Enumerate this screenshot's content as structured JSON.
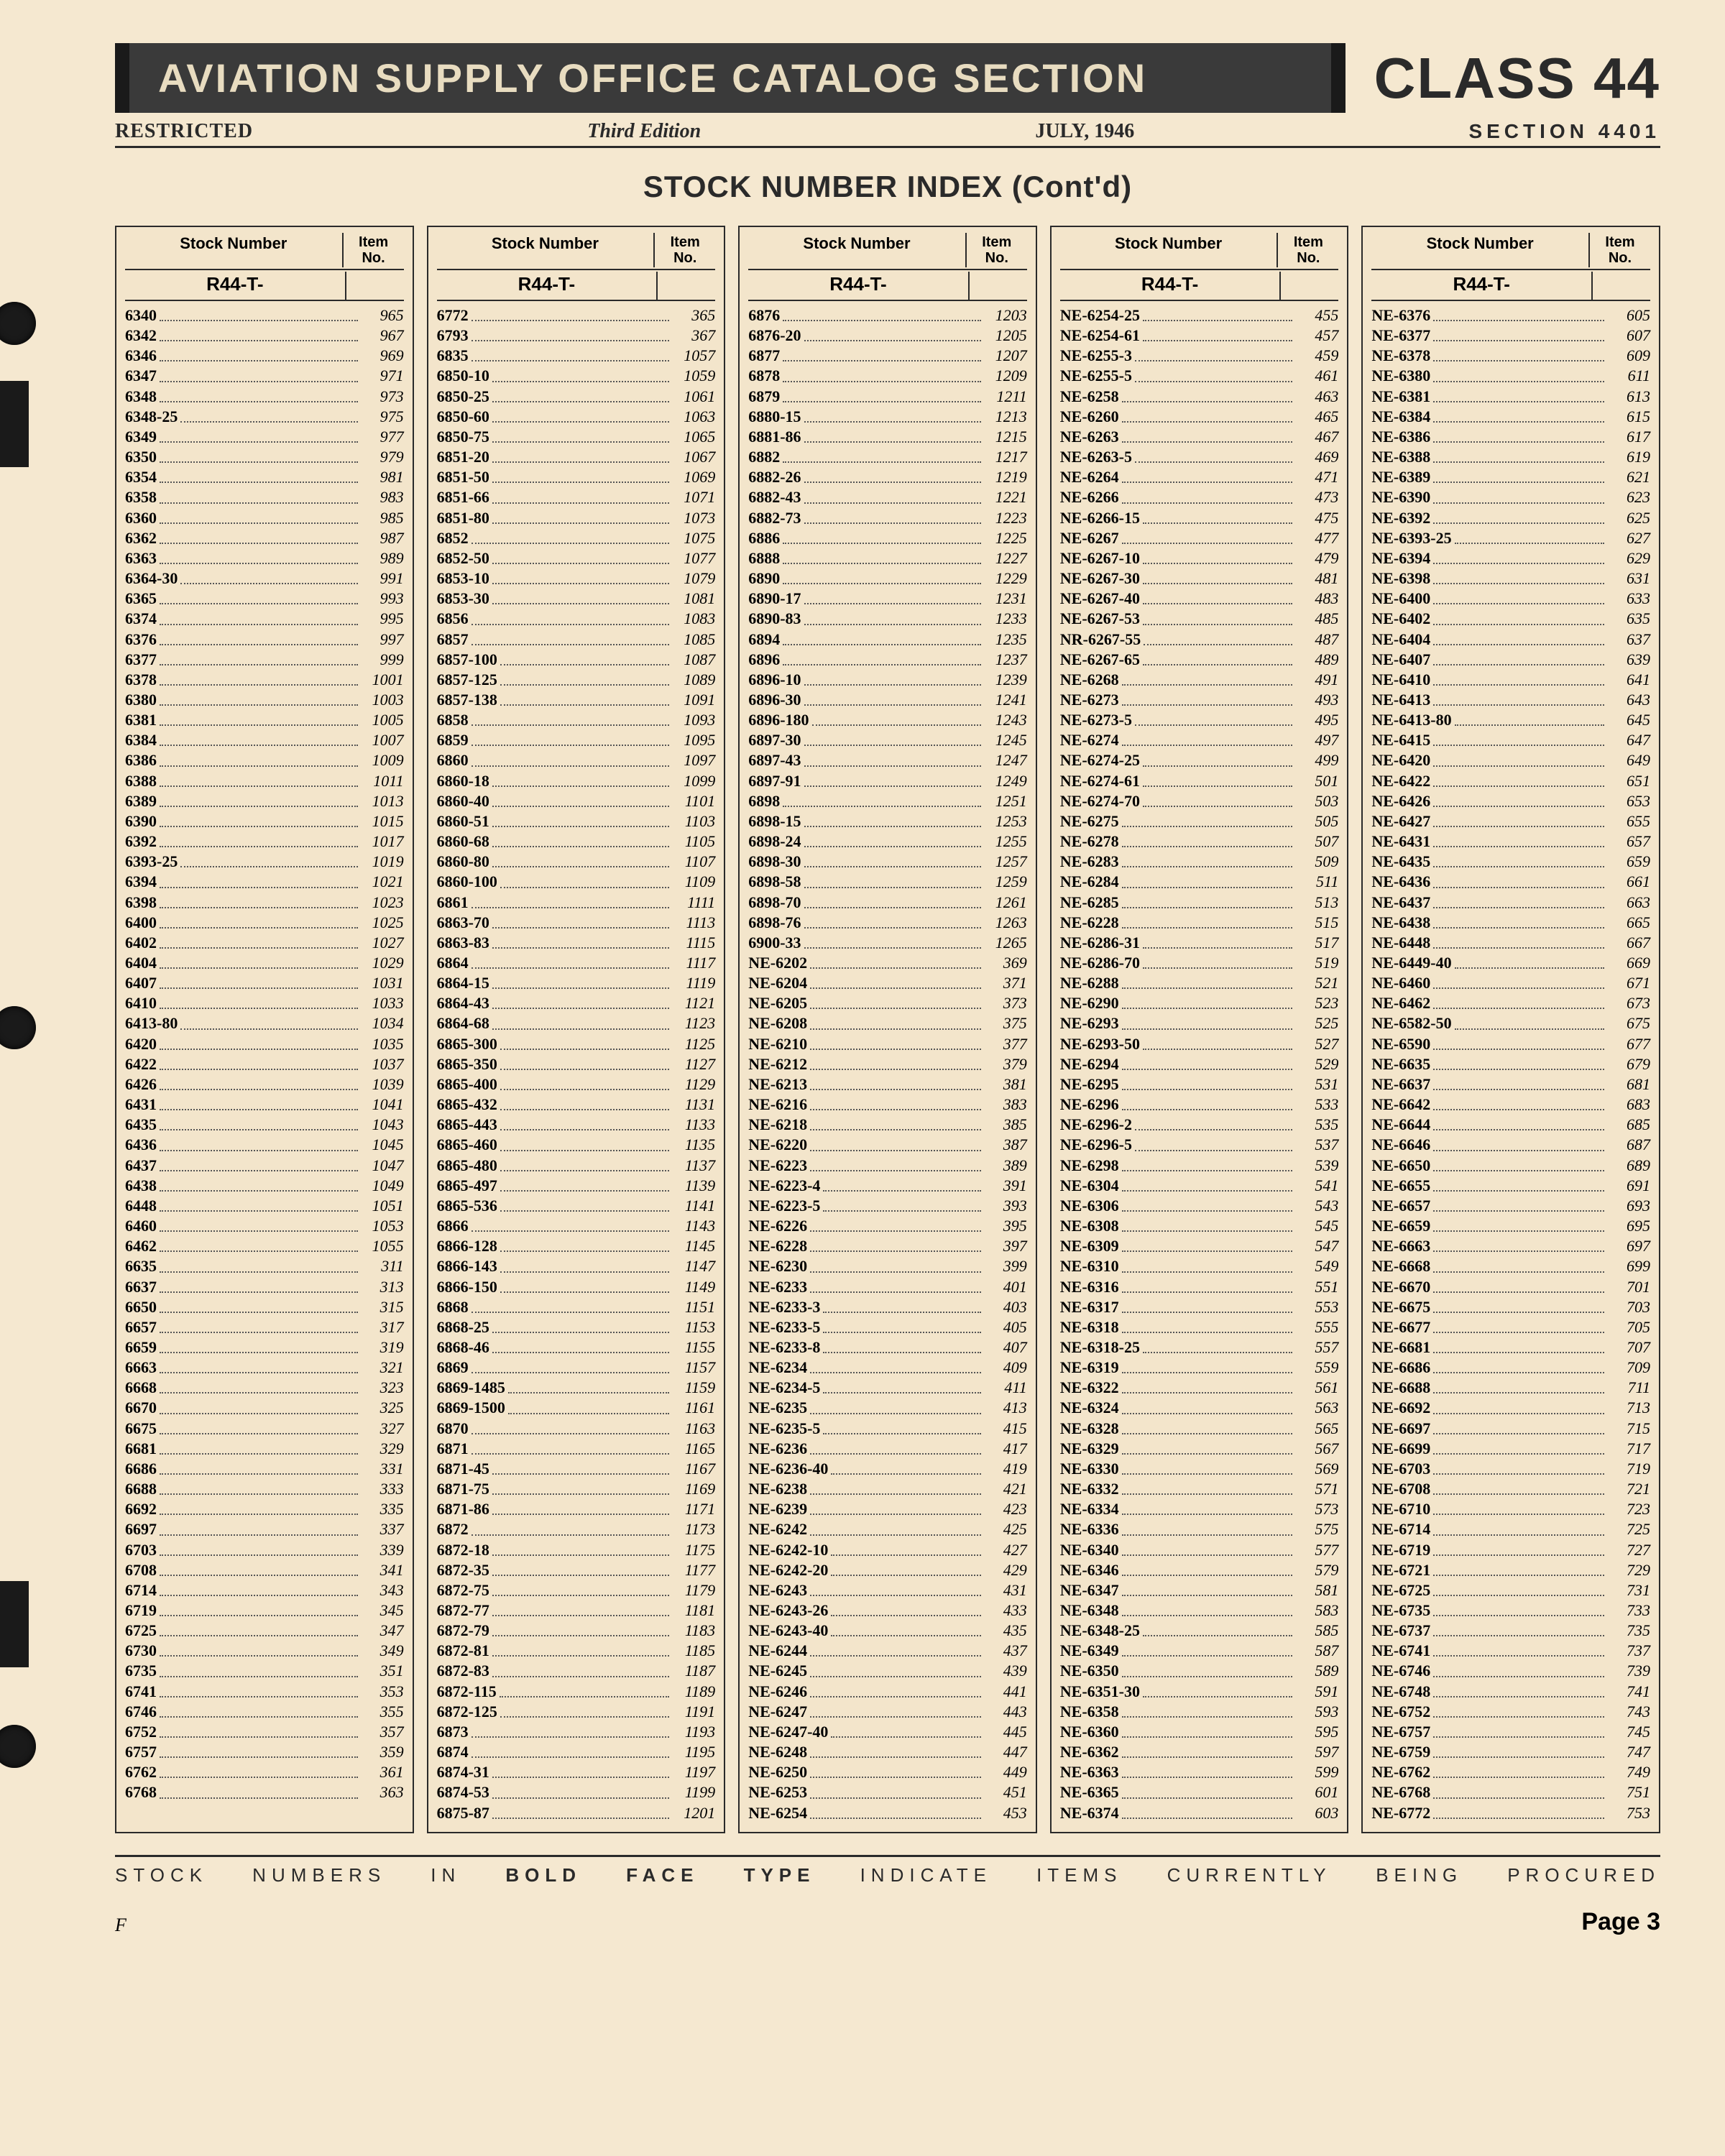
{
  "header": {
    "banner": "AVIATION SUPPLY OFFICE CATALOG SECTION",
    "class_label": "CLASS 44",
    "restricted": "RESTRICTED",
    "edition": "Third Edition",
    "date": "JULY, 1946",
    "section": "SECTION 4401"
  },
  "index_title": "STOCK NUMBER INDEX (Cont'd)",
  "col_hdr": {
    "stock": "Stock Number",
    "item": "Item\nNo.",
    "prefix": "R44-T-"
  },
  "columns": [
    [
      [
        "6340",
        "965"
      ],
      [
        "6342",
        "967"
      ],
      [
        "6346",
        "969"
      ],
      [
        "6347",
        "971"
      ],
      [
        "6348",
        "973"
      ],
      [
        "6348-25",
        "975"
      ],
      [
        "6349",
        "977"
      ],
      [
        "6350",
        "979"
      ],
      [
        "6354",
        "981"
      ],
      [
        "6358",
        "983"
      ],
      [
        "6360",
        "985"
      ],
      [
        "6362",
        "987"
      ],
      [
        "6363",
        "989"
      ],
      [
        "6364-30",
        "991"
      ],
      [
        "6365",
        "993"
      ],
      [
        "6374",
        "995"
      ],
      [
        "6376",
        "997"
      ],
      [
        "6377",
        "999"
      ],
      [
        "6378",
        "1001"
      ],
      [
        "6380",
        "1003"
      ],
      [
        "6381",
        "1005"
      ],
      [
        "6384",
        "1007"
      ],
      [
        "6386",
        "1009"
      ],
      [
        "6388",
        "1011"
      ],
      [
        "6389",
        "1013"
      ],
      [
        "6390",
        "1015"
      ],
      [
        "6392",
        "1017"
      ],
      [
        "6393-25",
        "1019"
      ],
      [
        "6394",
        "1021"
      ],
      [
        "6398",
        "1023"
      ],
      [
        "6400",
        "1025"
      ],
      [
        "6402",
        "1027"
      ],
      [
        "6404",
        "1029"
      ],
      [
        "6407",
        "1031"
      ],
      [
        "6410",
        "1033"
      ],
      [
        "6413-80",
        "1034"
      ],
      [
        "6420",
        "1035"
      ],
      [
        "6422",
        "1037"
      ],
      [
        "6426",
        "1039"
      ],
      [
        "6431",
        "1041"
      ],
      [
        "6435",
        "1043"
      ],
      [
        "6436",
        "1045"
      ],
      [
        "6437",
        "1047"
      ],
      [
        "6438",
        "1049"
      ],
      [
        "6448",
        "1051"
      ],
      [
        "6460",
        "1053"
      ],
      [
        "6462",
        "1055"
      ],
      [
        "6635",
        "311"
      ],
      [
        "6637",
        "313"
      ],
      [
        "6650",
        "315"
      ],
      [
        "6657",
        "317"
      ],
      [
        "6659",
        "319"
      ],
      [
        "6663",
        "321"
      ],
      [
        "6668",
        "323"
      ],
      [
        "6670",
        "325"
      ],
      [
        "6675",
        "327"
      ],
      [
        "6681",
        "329"
      ],
      [
        "6686",
        "331"
      ],
      [
        "6688",
        "333"
      ],
      [
        "6692",
        "335"
      ],
      [
        "6697",
        "337"
      ],
      [
        "6703",
        "339"
      ],
      [
        "6708",
        "341"
      ],
      [
        "6714",
        "343"
      ],
      [
        "6719",
        "345"
      ],
      [
        "6725",
        "347"
      ],
      [
        "6730",
        "349"
      ],
      [
        "6735",
        "351"
      ],
      [
        "6741",
        "353"
      ],
      [
        "6746",
        "355"
      ],
      [
        "6752",
        "357"
      ],
      [
        "6757",
        "359"
      ],
      [
        "6762",
        "361"
      ],
      [
        "6768",
        "363"
      ]
    ],
    [
      [
        "6772",
        "365"
      ],
      [
        "6793",
        "367"
      ],
      [
        "6835",
        "1057"
      ],
      [
        "6850-10",
        "1059"
      ],
      [
        "6850-25",
        "1061"
      ],
      [
        "6850-60",
        "1063"
      ],
      [
        "6850-75",
        "1065"
      ],
      [
        "6851-20",
        "1067"
      ],
      [
        "6851-50",
        "1069"
      ],
      [
        "6851-66",
        "1071"
      ],
      [
        "6851-80",
        "1073"
      ],
      [
        "6852",
        "1075"
      ],
      [
        "6852-50",
        "1077"
      ],
      [
        "6853-10",
        "1079"
      ],
      [
        "6853-30",
        "1081"
      ],
      [
        "6856",
        "1083"
      ],
      [
        "6857",
        "1085"
      ],
      [
        "6857-100",
        "1087"
      ],
      [
        "6857-125",
        "1089"
      ],
      [
        "6857-138",
        "1091"
      ],
      [
        "6858",
        "1093"
      ],
      [
        "6859",
        "1095"
      ],
      [
        "6860",
        "1097"
      ],
      [
        "6860-18",
        "1099"
      ],
      [
        "6860-40",
        "1101"
      ],
      [
        "6860-51",
        "1103"
      ],
      [
        "6860-68",
        "1105"
      ],
      [
        "6860-80",
        "1107"
      ],
      [
        "6860-100",
        "1109"
      ],
      [
        "6861",
        "1111"
      ],
      [
        "6863-70",
        "1113"
      ],
      [
        "6863-83",
        "1115"
      ],
      [
        "6864",
        "1117"
      ],
      [
        "6864-15",
        "1119"
      ],
      [
        "6864-43",
        "1121"
      ],
      [
        "6864-68",
        "1123"
      ],
      [
        "6865-300",
        "1125"
      ],
      [
        "6865-350",
        "1127"
      ],
      [
        "6865-400",
        "1129"
      ],
      [
        "6865-432",
        "1131"
      ],
      [
        "6865-443",
        "1133"
      ],
      [
        "6865-460",
        "1135"
      ],
      [
        "6865-480",
        "1137"
      ],
      [
        "6865-497",
        "1139"
      ],
      [
        "6865-536",
        "1141"
      ],
      [
        "6866",
        "1143"
      ],
      [
        "6866-128",
        "1145"
      ],
      [
        "6866-143",
        "1147"
      ],
      [
        "6866-150",
        "1149"
      ],
      [
        "6868",
        "1151"
      ],
      [
        "6868-25",
        "1153"
      ],
      [
        "6868-46",
        "1155"
      ],
      [
        "6869",
        "1157"
      ],
      [
        "6869-1485",
        "1159"
      ],
      [
        "6869-1500",
        "1161"
      ],
      [
        "6870",
        "1163"
      ],
      [
        "6871",
        "1165"
      ],
      [
        "6871-45",
        "1167"
      ],
      [
        "6871-75",
        "1169"
      ],
      [
        "6871-86",
        "1171"
      ],
      [
        "6872",
        "1173"
      ],
      [
        "6872-18",
        "1175"
      ],
      [
        "6872-35",
        "1177"
      ],
      [
        "6872-75",
        "1179"
      ],
      [
        "6872-77",
        "1181"
      ],
      [
        "6872-79",
        "1183"
      ],
      [
        "6872-81",
        "1185"
      ],
      [
        "6872-83",
        "1187"
      ],
      [
        "6872-115",
        "1189"
      ],
      [
        "6872-125",
        "1191"
      ],
      [
        "6873",
        "1193"
      ],
      [
        "6874",
        "1195"
      ],
      [
        "6874-31",
        "1197"
      ],
      [
        "6874-53",
        "1199"
      ],
      [
        "6875-87",
        "1201"
      ]
    ],
    [
      [
        "6876",
        "1203"
      ],
      [
        "6876-20",
        "1205"
      ],
      [
        "6877",
        "1207"
      ],
      [
        "6878",
        "1209"
      ],
      [
        "6879",
        "1211"
      ],
      [
        "6880-15",
        "1213"
      ],
      [
        "6881-86",
        "1215"
      ],
      [
        "6882",
        "1217"
      ],
      [
        "6882-26",
        "1219"
      ],
      [
        "6882-43",
        "1221"
      ],
      [
        "6882-73",
        "1223"
      ],
      [
        "6886",
        "1225"
      ],
      [
        "6888",
        "1227"
      ],
      [
        "6890",
        "1229"
      ],
      [
        "6890-17",
        "1231"
      ],
      [
        "6890-83",
        "1233"
      ],
      [
        "6894",
        "1235"
      ],
      [
        "6896",
        "1237"
      ],
      [
        "6896-10",
        "1239"
      ],
      [
        "6896-30",
        "1241"
      ],
      [
        "6896-180",
        "1243"
      ],
      [
        "6897-30",
        "1245"
      ],
      [
        "6897-43",
        "1247"
      ],
      [
        "6897-91",
        "1249"
      ],
      [
        "6898",
        "1251"
      ],
      [
        "6898-15",
        "1253"
      ],
      [
        "6898-24",
        "1255"
      ],
      [
        "6898-30",
        "1257"
      ],
      [
        "6898-58",
        "1259"
      ],
      [
        "6898-70",
        "1261"
      ],
      [
        "6898-76",
        "1263"
      ],
      [
        "6900-33",
        "1265"
      ],
      [
        "NE-6202",
        "369"
      ],
      [
        "NE-6204",
        "371"
      ],
      [
        "NE-6205",
        "373"
      ],
      [
        "NE-6208",
        "375"
      ],
      [
        "NE-6210",
        "377"
      ],
      [
        "NE-6212",
        "379"
      ],
      [
        "NE-6213",
        "381"
      ],
      [
        "NE-6216",
        "383"
      ],
      [
        "NE-6218",
        "385"
      ],
      [
        "NE-6220",
        "387"
      ],
      [
        "NE-6223",
        "389"
      ],
      [
        "NE-6223-4",
        "391"
      ],
      [
        "NE-6223-5",
        "393"
      ],
      [
        "NE-6226",
        "395"
      ],
      [
        "NE-6228",
        "397"
      ],
      [
        "NE-6230",
        "399"
      ],
      [
        "NE-6233",
        "401"
      ],
      [
        "NE-6233-3",
        "403"
      ],
      [
        "NE-6233-5",
        "405"
      ],
      [
        "NE-6233-8",
        "407"
      ],
      [
        "NE-6234",
        "409"
      ],
      [
        "NE-6234-5",
        "411"
      ],
      [
        "NE-6235",
        "413"
      ],
      [
        "NE-6235-5",
        "415"
      ],
      [
        "NE-6236",
        "417"
      ],
      [
        "NE-6236-40",
        "419"
      ],
      [
        "NE-6238",
        "421"
      ],
      [
        "NE-6239",
        "423"
      ],
      [
        "NE-6242",
        "425"
      ],
      [
        "NE-6242-10",
        "427"
      ],
      [
        "NE-6242-20",
        "429"
      ],
      [
        "NE-6243",
        "431"
      ],
      [
        "NE-6243-26",
        "433"
      ],
      [
        "NE-6243-40",
        "435"
      ],
      [
        "NE-6244",
        "437"
      ],
      [
        "NE-6245",
        "439"
      ],
      [
        "NE-6246",
        "441"
      ],
      [
        "NE-6247",
        "443"
      ],
      [
        "NE-6247-40",
        "445"
      ],
      [
        "NE-6248",
        "447"
      ],
      [
        "NE-6250",
        "449"
      ],
      [
        "NE-6253",
        "451"
      ],
      [
        "NE-6254",
        "453"
      ]
    ],
    [
      [
        "NE-6254-25",
        "455"
      ],
      [
        "NE-6254-61",
        "457"
      ],
      [
        "NE-6255-3",
        "459"
      ],
      [
        "NE-6255-5",
        "461"
      ],
      [
        "NE-6258",
        "463"
      ],
      [
        "NE-6260",
        "465"
      ],
      [
        "NE-6263",
        "467"
      ],
      [
        "NE-6263-5",
        "469"
      ],
      [
        "NE-6264",
        "471"
      ],
      [
        "NE-6266",
        "473"
      ],
      [
        "NE-6266-15",
        "475"
      ],
      [
        "NE-6267",
        "477"
      ],
      [
        "NE-6267-10",
        "479"
      ],
      [
        "NE-6267-30",
        "481"
      ],
      [
        "NE-6267-40",
        "483"
      ],
      [
        "NE-6267-53",
        "485"
      ],
      [
        "NR-6267-55",
        "487"
      ],
      [
        "NE-6267-65",
        "489"
      ],
      [
        "NE-6268",
        "491"
      ],
      [
        "NE-6273",
        "493"
      ],
      [
        "NE-6273-5",
        "495"
      ],
      [
        "NE-6274",
        "497"
      ],
      [
        "NE-6274-25",
        "499"
      ],
      [
        "NE-6274-61",
        "501"
      ],
      [
        "NE-6274-70",
        "503"
      ],
      [
        "NE-6275",
        "505"
      ],
      [
        "NE-6278",
        "507"
      ],
      [
        "NE-6283",
        "509"
      ],
      [
        "NE-6284",
        "511"
      ],
      [
        "NE-6285",
        "513"
      ],
      [
        "NE-6228",
        "515"
      ],
      [
        "NE-6286-31",
        "517"
      ],
      [
        "NE-6286-70",
        "519"
      ],
      [
        "NE-6288",
        "521"
      ],
      [
        "NE-6290",
        "523"
      ],
      [
        "NE-6293",
        "525"
      ],
      [
        "NE-6293-50",
        "527"
      ],
      [
        "NE-6294",
        "529"
      ],
      [
        "NE-6295",
        "531"
      ],
      [
        "NE-6296",
        "533"
      ],
      [
        "NE-6296-2",
        "535"
      ],
      [
        "NE-6296-5",
        "537"
      ],
      [
        "NE-6298",
        "539"
      ],
      [
        "NE-6304",
        "541"
      ],
      [
        "NE-6306",
        "543"
      ],
      [
        "NE-6308",
        "545"
      ],
      [
        "NE-6309",
        "547"
      ],
      [
        "NE-6310",
        "549"
      ],
      [
        "NE-6316",
        "551"
      ],
      [
        "NE-6317",
        "553"
      ],
      [
        "NE-6318",
        "555"
      ],
      [
        "NE-6318-25",
        "557"
      ],
      [
        "NE-6319",
        "559"
      ],
      [
        "NE-6322",
        "561"
      ],
      [
        "NE-6324",
        "563"
      ],
      [
        "NE-6328",
        "565"
      ],
      [
        "NE-6329",
        "567"
      ],
      [
        "NE-6330",
        "569"
      ],
      [
        "NE-6332",
        "571"
      ],
      [
        "NE-6334",
        "573"
      ],
      [
        "NE-6336",
        "575"
      ],
      [
        "NE-6340",
        "577"
      ],
      [
        "NE-6346",
        "579"
      ],
      [
        "NE-6347",
        "581"
      ],
      [
        "NE-6348",
        "583"
      ],
      [
        "NE-6348-25",
        "585"
      ],
      [
        "NE-6349",
        "587"
      ],
      [
        "NE-6350",
        "589"
      ],
      [
        "NE-6351-30",
        "591"
      ],
      [
        "NE-6358",
        "593"
      ],
      [
        "NE-6360",
        "595"
      ],
      [
        "NE-6362",
        "597"
      ],
      [
        "NE-6363",
        "599"
      ],
      [
        "NE-6365",
        "601"
      ],
      [
        "NE-6374",
        "603"
      ]
    ],
    [
      [
        "NE-6376",
        "605"
      ],
      [
        "NE-6377",
        "607"
      ],
      [
        "NE-6378",
        "609"
      ],
      [
        "NE-6380",
        "611"
      ],
      [
        "NE-6381",
        "613"
      ],
      [
        "NE-6384",
        "615"
      ],
      [
        "NE-6386",
        "617"
      ],
      [
        "NE-6388",
        "619"
      ],
      [
        "NE-6389",
        "621"
      ],
      [
        "NE-6390",
        "623"
      ],
      [
        "NE-6392",
        "625"
      ],
      [
        "NE-6393-25",
        "627"
      ],
      [
        "NE-6394",
        "629"
      ],
      [
        "NE-6398",
        "631"
      ],
      [
        "NE-6400",
        "633"
      ],
      [
        "NE-6402",
        "635"
      ],
      [
        "NE-6404",
        "637"
      ],
      [
        "NE-6407",
        "639"
      ],
      [
        "NE-6410",
        "641"
      ],
      [
        "NE-6413",
        "643"
      ],
      [
        "NE-6413-80",
        "645"
      ],
      [
        "NE-6415",
        "647"
      ],
      [
        "NE-6420",
        "649"
      ],
      [
        "NE-6422",
        "651"
      ],
      [
        "NE-6426",
        "653"
      ],
      [
        "NE-6427",
        "655"
      ],
      [
        "NE-6431",
        "657"
      ],
      [
        "NE-6435",
        "659"
      ],
      [
        "NE-6436",
        "661"
      ],
      [
        "NE-6437",
        "663"
      ],
      [
        "NE-6438",
        "665"
      ],
      [
        "NE-6448",
        "667"
      ],
      [
        "NE-6449-40",
        "669"
      ],
      [
        "NE-6460",
        "671"
      ],
      [
        "NE-6462",
        "673"
      ],
      [
        "NE-6582-50",
        "675"
      ],
      [
        "NE-6590",
        "677"
      ],
      [
        "NE-6635",
        "679"
      ],
      [
        "NE-6637",
        "681"
      ],
      [
        "NE-6642",
        "683"
      ],
      [
        "NE-6644",
        "685"
      ],
      [
        "NE-6646",
        "687"
      ],
      [
        "NE-6650",
        "689"
      ],
      [
        "NE-6655",
        "691"
      ],
      [
        "NE-6657",
        "693"
      ],
      [
        "NE-6659",
        "695"
      ],
      [
        "NE-6663",
        "697"
      ],
      [
        "NE-6668",
        "699"
      ],
      [
        "NE-6670",
        "701"
      ],
      [
        "NE-6675",
        "703"
      ],
      [
        "NE-6677",
        "705"
      ],
      [
        "NE-6681",
        "707"
      ],
      [
        "NE-6686",
        "709"
      ],
      [
        "NE-6688",
        "711"
      ],
      [
        "NE-6692",
        "713"
      ],
      [
        "NE-6697",
        "715"
      ],
      [
        "NE-6699",
        "717"
      ],
      [
        "NE-6703",
        "719"
      ],
      [
        "NE-6708",
        "721"
      ],
      [
        "NE-6710",
        "723"
      ],
      [
        "NE-6714",
        "725"
      ],
      [
        "NE-6719",
        "727"
      ],
      [
        "NE-6721",
        "729"
      ],
      [
        "NE-6725",
        "731"
      ],
      [
        "NE-6735",
        "733"
      ],
      [
        "NE-6737",
        "735"
      ],
      [
        "NE-6741",
        "737"
      ],
      [
        "NE-6746",
        "739"
      ],
      [
        "NE-6748",
        "741"
      ],
      [
        "NE-6752",
        "743"
      ],
      [
        "NE-6757",
        "745"
      ],
      [
        "NE-6759",
        "747"
      ],
      [
        "NE-6762",
        "749"
      ],
      [
        "NE-6768",
        "751"
      ],
      [
        "NE-6772",
        "753"
      ]
    ]
  ],
  "footer": {
    "note_pre": "STOCK NUMBERS IN ",
    "note_bold": "BOLD FACE TYPE",
    "note_post": " INDICATE ITEMS CURRENTLY BEING PROCURED",
    "page": "Page 3",
    "folio": "F"
  }
}
